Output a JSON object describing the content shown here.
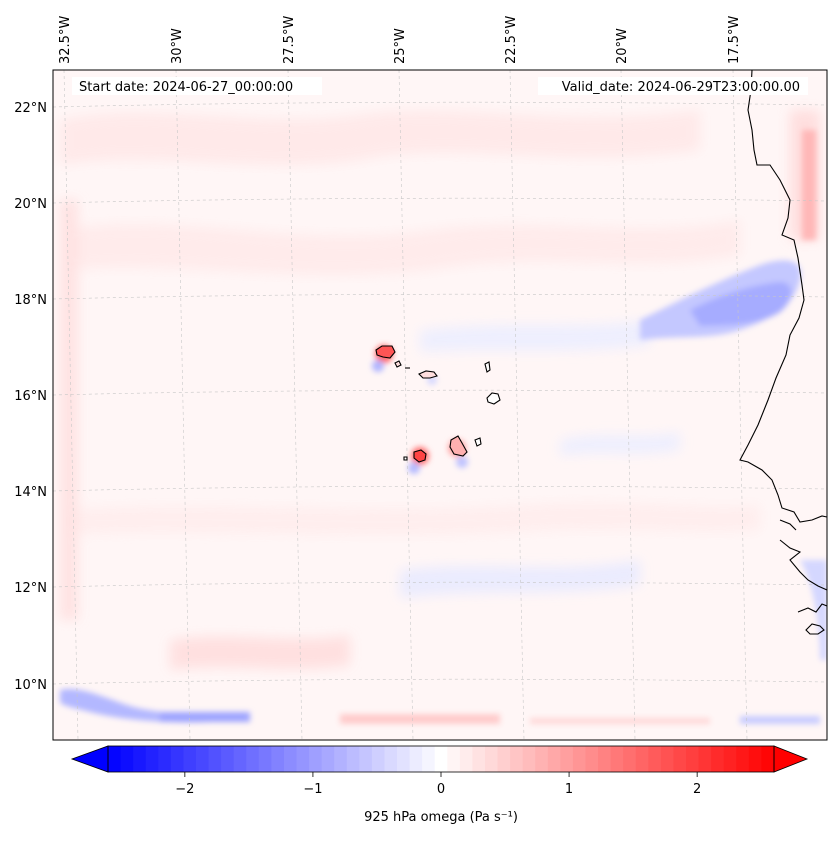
{
  "map": {
    "title_start": "Start date: 2024-06-27_00:00:00",
    "title_valid": "Valid_date: 2024-06-29T23:00:00.00",
    "lon_labels": [
      "32.5°W",
      "30°W",
      "27.5°W",
      "25°W",
      "22.5°W",
      "20°W",
      "17.5°W"
    ],
    "lat_labels": [
      "22°N",
      "20°N",
      "18°N",
      "16°N",
      "14°N",
      "12°N",
      "10°N"
    ],
    "extent": {
      "lon_min": -32.8,
      "lon_max": -15.8,
      "lat_min": 8.9,
      "lat_max": 22.8
    },
    "gridlines": true,
    "coastline_color": "#000000"
  },
  "colorbar": {
    "label": "925 hPa omega (Pa s⁻¹)",
    "ticks": [
      "−2",
      "−1",
      "0",
      "1",
      "2"
    ],
    "tick_values": [
      -2,
      -1,
      0,
      1,
      2
    ],
    "vmin": -2.6,
    "vmax": 2.6,
    "levels": 53,
    "extend": "both",
    "cmap": "bwr",
    "color_min": "#0000ff",
    "color_mid": "#ffffff",
    "color_max": "#ff0000"
  }
}
